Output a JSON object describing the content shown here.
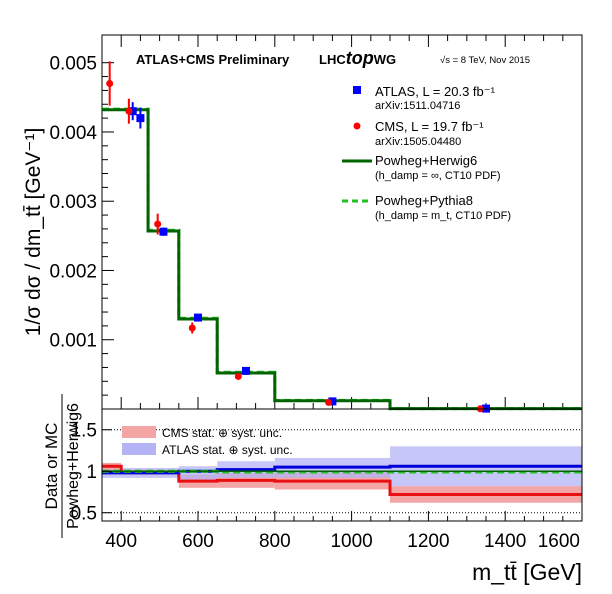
{
  "chart_data": [
    {
      "type": "line",
      "panel": "main",
      "header": {
        "experiment": "ATLAS+CMS Preliminary",
        "lhc_prefix": "LHC",
        "lhc_top": "top",
        "lhc_wg": "WG",
        "energy": "√s = 8 TeV, Nov 2015"
      },
      "ylabel": "1/σ dσ / dm_tt̄ [GeV⁻¹]",
      "xlim": [
        350,
        1600
      ],
      "ylim": [
        0,
        0.0054
      ],
      "yticks": [
        {
          "value": 0.001,
          "label": "0.001"
        },
        {
          "value": 0.002,
          "label": "0.002"
        },
        {
          "value": 0.003,
          "label": "0.003"
        },
        {
          "value": 0.004,
          "label": "0.004"
        },
        {
          "value": 0.005,
          "label": "0.005"
        }
      ],
      "bin_edges": [
        350,
        470,
        550,
        650,
        800,
        1100,
        1600
      ],
      "series": [
        {
          "name": "ATLAS, L = 20.3 fb⁻¹",
          "ref": "arXiv:1511.04716",
          "style": "square",
          "color": "#0000ff",
          "x": [
            430,
            510,
            600,
            725,
            950,
            1350
          ],
          "y": [
            0.0043,
            0.00256,
            0.00132,
            0.00055,
            0.00011,
            6e-06
          ],
          "yerr": [
            0.00013,
            6e-05,
            4e-05,
            2e-05,
            6e-06,
            2e-06
          ],
          "x2": [
            450
          ],
          "y2": [
            0.0042
          ],
          "yerr2": [
            0.00015
          ]
        },
        {
          "name": "CMS, L = 19.7 fb⁻¹",
          "ref": "arXiv:1505.04480",
          "style": "circle",
          "color": "#ff0000",
          "x": [
            370,
            420,
            495,
            585,
            705,
            940,
            1335
          ],
          "y": [
            0.0047,
            0.0043,
            0.00267,
            0.00117,
            0.00047,
            9.5e-05,
            4e-06
          ],
          "yerr": [
            0.00032,
            0.00018,
            0.00015,
            8e-05,
            3e-05,
            8e-06,
            2e-06
          ]
        },
        {
          "name": "Powheg+Herwig6",
          "note": "(h_damp = ∞, CT10 PDF)",
          "style": "solid",
          "color": "#006400",
          "values": [
            0.00432,
            0.00257,
            0.0013,
            0.00052,
            0.00012,
            6e-06
          ]
        },
        {
          "name": "Powheg+Pythia8",
          "note": "(h_damp = m_t, CT10 PDF)",
          "style": "dashed",
          "color": "#22c022",
          "values": [
            0.00433,
            0.00258,
            0.00131,
            0.00053,
            0.000125,
            6e-06
          ]
        }
      ]
    },
    {
      "type": "area",
      "panel": "ratio",
      "ylabel_top": "Data or MC",
      "ylabel_bottom": "Powheg+Herwig6",
      "xlabel": "m_tt̄ [GeV]",
      "xlim": [
        350,
        1600
      ],
      "ylim": [
        0.4,
        1.75
      ],
      "yticks": [
        {
          "value": 0.5,
          "label": "0.5"
        },
        {
          "value": 1.0,
          "label": "1"
        },
        {
          "value": 1.5,
          "label": "1.5"
        }
      ],
      "xticks": [
        {
          "value": 400,
          "label": "400"
        },
        {
          "value": 600,
          "label": "600"
        },
        {
          "value": 800,
          "label": "800"
        },
        {
          "value": 1000,
          "label": "1000"
        },
        {
          "value": 1200,
          "label": "1200"
        },
        {
          "value": 1400,
          "label": "1400"
        },
        {
          "value": 1600,
          "label": "1600"
        }
      ],
      "bin_edges": [
        350,
        400,
        550,
        650,
        800,
        1100,
        1600
      ],
      "bands": [
        {
          "name": "CMS stat. ⊕ syst. unc.",
          "color": "#f4a6a6",
          "lo": [
            0.99,
            0.96,
            0.8,
            0.8,
            0.78,
            0.62
          ],
          "hi": [
            1.1,
            1.02,
            0.96,
            0.98,
            1.0,
            0.82
          ]
        },
        {
          "name": "ATLAS stat. ⊕ syst. unc.",
          "color": "#b3b3f5",
          "lo": [
            0.92,
            0.92,
            0.9,
            0.92,
            0.92,
            0.82
          ],
          "hi": [
            1.02,
            1.04,
            1.06,
            1.12,
            1.16,
            1.3
          ]
        }
      ],
      "lines": [
        {
          "name": "CMS",
          "color": "#e81010",
          "values": [
            1.06,
            0.99,
            0.88,
            0.89,
            0.88,
            0.72
          ]
        },
        {
          "name": "ATLAS",
          "color": "#0000d8",
          "values": [
            0.98,
            0.98,
            1.0,
            1.02,
            1.05,
            1.06
          ]
        },
        {
          "name": "Powheg+Pythia8",
          "color": "#22c022",
          "values": [
            1.0,
            1.0,
            1.0,
            0.99,
            0.99,
            0.99
          ]
        },
        {
          "name": "Powheg+Herwig6",
          "color": "#006400",
          "values": [
            1.0,
            1.0,
            1.0,
            1.0,
            1.0,
            1.0
          ]
        }
      ],
      "grid_lines": [
        0.5,
        1.0,
        1.5
      ]
    }
  ]
}
